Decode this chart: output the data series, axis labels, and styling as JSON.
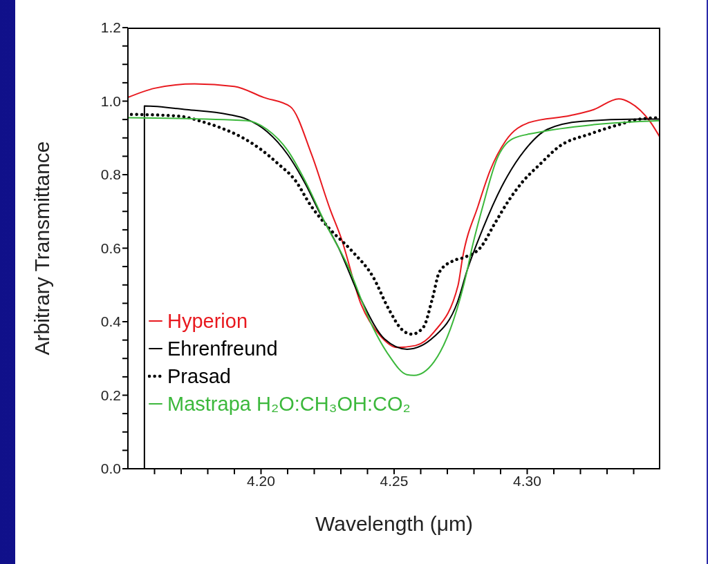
{
  "chart_data": {
    "type": "line",
    "xlabel": "Wavelength (μm)",
    "ylabel": "Arbitrary Transmittance",
    "xlim": [
      4.15,
      4.35
    ],
    "ylim": [
      0,
      1.2
    ],
    "xticks": [
      {
        "value": 4.16,
        "label": null
      },
      {
        "value": 4.17,
        "label": null
      },
      {
        "value": 4.18,
        "label": null
      },
      {
        "value": 4.19,
        "label": null
      },
      {
        "value": 4.2,
        "label": "4.20"
      },
      {
        "value": 4.21,
        "label": null
      },
      {
        "value": 4.22,
        "label": null
      },
      {
        "value": 4.23,
        "label": null
      },
      {
        "value": 4.24,
        "label": null
      },
      {
        "value": 4.25,
        "label": "4.25"
      },
      {
        "value": 4.26,
        "label": null
      },
      {
        "value": 4.27,
        "label": null
      },
      {
        "value": 4.28,
        "label": null
      },
      {
        "value": 4.29,
        "label": null
      },
      {
        "value": 4.3,
        "label": "4.30"
      },
      {
        "value": 4.31,
        "label": null
      },
      {
        "value": 4.32,
        "label": null
      },
      {
        "value": 4.33,
        "label": null
      },
      {
        "value": 4.34,
        "label": null
      }
    ],
    "yticks": [
      {
        "value": 0,
        "label": "0.0"
      },
      {
        "value": 0.05,
        "label": null
      },
      {
        "value": 0.1,
        "label": null
      },
      {
        "value": 0.15,
        "label": null
      },
      {
        "value": 0.2,
        "label": "0.2"
      },
      {
        "value": 0.25,
        "label": null
      },
      {
        "value": 0.3,
        "label": null
      },
      {
        "value": 0.35,
        "label": null
      },
      {
        "value": 0.4,
        "label": "0.4"
      },
      {
        "value": 0.45,
        "label": null
      },
      {
        "value": 0.5,
        "label": null
      },
      {
        "value": 0.55,
        "label": null
      },
      {
        "value": 0.6,
        "label": "0.6"
      },
      {
        "value": 0.65,
        "label": null
      },
      {
        "value": 0.7,
        "label": null
      },
      {
        "value": 0.75,
        "label": null
      },
      {
        "value": 0.8,
        "label": "0.8"
      },
      {
        "value": 0.85,
        "label": null
      },
      {
        "value": 0.9,
        "label": null
      },
      {
        "value": 0.95,
        "label": null
      },
      {
        "value": 1.0,
        "label": "1.0"
      },
      {
        "value": 1.05,
        "label": null
      },
      {
        "value": 1.1,
        "label": null
      },
      {
        "value": 1.15,
        "label": null
      },
      {
        "value": 1.2,
        "label": "1.2"
      }
    ],
    "grid": false,
    "legend": "bottom left",
    "marker": "none",
    "series": [
      {
        "name": "Hyperion",
        "color": "#e8191f",
        "line_style": "solid",
        "x": [
          4.15,
          4.16,
          4.175,
          4.19,
          4.201,
          4.211,
          4.219,
          4.226,
          4.23,
          4.2376,
          4.245,
          4.251,
          4.258,
          4.265,
          4.274,
          4.2757,
          4.2816,
          4.286,
          4.292,
          4.3008,
          4.3163,
          4.325,
          4.3344,
          4.3386,
          4.3464,
          4.35
        ],
        "values": [
          1.01,
          1.035,
          1.047,
          1.04,
          1.01,
          0.985,
          0.855,
          0.705,
          0.63,
          0.447,
          0.36,
          0.33,
          0.335,
          0.372,
          0.498,
          0.573,
          0.716,
          0.81,
          0.893,
          0.942,
          0.961,
          0.977,
          1.006,
          0.996,
          0.942,
          0.9
        ]
      },
      {
        "name": "Ehrenfreund",
        "color": "#000000",
        "line_style": "solid",
        "x": [
          4.1562,
          4.1562,
          4.172,
          4.1876,
          4.1946,
          4.2023,
          4.21,
          4.2168,
          4.222,
          4.229,
          4.2376,
          4.2464,
          4.2549,
          4.265,
          4.2738,
          4.2775,
          4.2834,
          4.2904,
          4.299,
          4.3075,
          4.3205,
          4.3422,
          4.35
        ],
        "values": [
          0,
          0.987,
          0.977,
          0.964,
          0.951,
          0.917,
          0.855,
          0.773,
          0.697,
          0.603,
          0.46,
          0.353,
          0.325,
          0.359,
          0.453,
          0.541,
          0.654,
          0.767,
          0.866,
          0.923,
          0.945,
          0.951,
          0.951
        ]
      },
      {
        "name": "Prasad",
        "color": "#000000",
        "line_style": "dotted",
        "x": [
          4.1513,
          4.1694,
          4.178,
          4.185,
          4.1927,
          4.1997,
          4.2065,
          4.2127,
          4.2187,
          4.2256,
          4.2342,
          4.242,
          4.248,
          4.253,
          4.2567,
          4.261,
          4.2645,
          4.267,
          4.2723,
          4.2764,
          4.2826,
          4.2878,
          4.293,
          4.2982,
          4.3049,
          4.3119,
          4.3241,
          4.3344,
          4.3422,
          4.35
        ],
        "values": [
          0.964,
          0.959,
          0.944,
          0.927,
          0.902,
          0.87,
          0.829,
          0.786,
          0.716,
          0.654,
          0.592,
          0.523,
          0.434,
          0.378,
          0.366,
          0.385,
          0.466,
          0.535,
          0.566,
          0.575,
          0.603,
          0.667,
          0.729,
          0.78,
          0.829,
          0.876,
          0.912,
          0.936,
          0.951,
          0.955
        ]
      },
      {
        "name": "Mastrapa H₂O:CH₃OH:CO₂",
        "color": "#3cb83c",
        "line_style": "solid",
        "x": [
          4.15,
          4.1946,
          4.2023,
          4.21,
          4.2168,
          4.2238,
          4.2324,
          4.242,
          4.2479,
          4.2548,
          4.2575,
          4.265,
          4.2723,
          4.2775,
          4.279,
          4.2834,
          4.2886,
          4.2946,
          4.3034,
          4.325,
          4.35
        ],
        "values": [
          0.955,
          0.947,
          0.923,
          0.866,
          0.78,
          0.673,
          0.555,
          0.385,
          0.31,
          0.256,
          0.254,
          0.291,
          0.404,
          0.541,
          0.592,
          0.716,
          0.842,
          0.898,
          0.914,
          0.936,
          0.947
        ]
      }
    ]
  }
}
